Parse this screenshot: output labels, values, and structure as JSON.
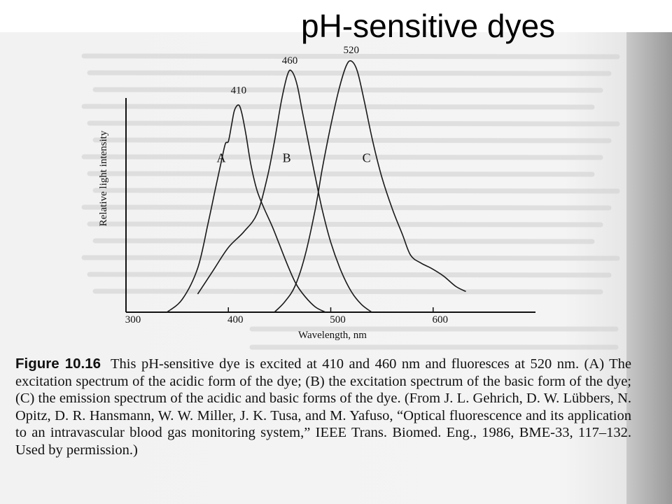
{
  "slide": {
    "title": "pH-sensitive dyes"
  },
  "figure": {
    "label": "Figure 10.16",
    "caption": "This pH-sensitive dye is excited at 410 and 460 nm and fluoresces at 520 nm. (A) The excitation spectrum of the acidic form of the dye; (B) the excitation spectrum of the basic form of the dye; (C) the emission spectrum of the acidic and basic forms of the dye. (From J. L. Gehrich, D. W. Lübbers, N. Opitz, D. R. Hansmann, W. W. Miller, J. K. Tusa, and M. Yafuso, “Optical fluorescence and its application to an intravascular blood gas monitoring system,” IEEE Trans. Biomed. Eng., 1986, BME-33, 117–132. Used by permission.)"
  },
  "chart_data": {
    "type": "line",
    "xlabel": "Wavelength, nm",
    "ylabel": "Relative light intensity",
    "xlim": [
      300,
      700
    ],
    "ylim": [
      0,
      1
    ],
    "x_ticks": [
      300,
      400,
      500,
      600
    ],
    "grid": false,
    "peak_labels": [
      {
        "x": 410,
        "y": 0.845,
        "text": "410"
      },
      {
        "x": 460,
        "y": 0.96,
        "text": "460"
      },
      {
        "x": 520,
        "y": 1.0,
        "text": "520"
      }
    ],
    "series": [
      {
        "name": "A",
        "label_position": {
          "x": 393,
          "y": 0.58
        },
        "points": [
          [
            340,
            0
          ],
          [
            355,
            0.05
          ],
          [
            370,
            0.17
          ],
          [
            380,
            0.34
          ],
          [
            387,
            0.47
          ],
          [
            393,
            0.58
          ],
          [
            397,
            0.65
          ],
          [
            400,
            0.66
          ],
          [
            403,
            0.72
          ],
          [
            406,
            0.78
          ],
          [
            410,
            0.8
          ],
          [
            413,
            0.77
          ],
          [
            417,
            0.69
          ],
          [
            422,
            0.57
          ],
          [
            428,
            0.47
          ],
          [
            435,
            0.4
          ],
          [
            443,
            0.33
          ],
          [
            450,
            0.26
          ],
          [
            458,
            0.18
          ],
          [
            466,
            0.11
          ],
          [
            475,
            0.06
          ],
          [
            485,
            0.02
          ],
          [
            495,
            0
          ]
        ]
      },
      {
        "name": "B",
        "label_position": {
          "x": 457,
          "y": 0.58
        },
        "points": [
          [
            370,
            0.07
          ],
          [
            385,
            0.16
          ],
          [
            400,
            0.25
          ],
          [
            415,
            0.31
          ],
          [
            428,
            0.38
          ],
          [
            438,
            0.52
          ],
          [
            445,
            0.66
          ],
          [
            452,
            0.82
          ],
          [
            458,
            0.92
          ],
          [
            462,
            0.93
          ],
          [
            467,
            0.88
          ],
          [
            472,
            0.78
          ],
          [
            478,
            0.66
          ],
          [
            485,
            0.52
          ],
          [
            492,
            0.39
          ],
          [
            500,
            0.27
          ],
          [
            510,
            0.16
          ],
          [
            520,
            0.08
          ],
          [
            530,
            0.03
          ],
          [
            540,
            0
          ]
        ]
      },
      {
        "name": "C",
        "label_position": {
          "x": 535,
          "y": 0.58
        },
        "points": [
          [
            445,
            0
          ],
          [
            455,
            0.04
          ],
          [
            465,
            0.1
          ],
          [
            475,
            0.22
          ],
          [
            485,
            0.4
          ],
          [
            492,
            0.56
          ],
          [
            500,
            0.72
          ],
          [
            508,
            0.86
          ],
          [
            515,
            0.95
          ],
          [
            520,
            0.97
          ],
          [
            526,
            0.93
          ],
          [
            533,
            0.81
          ],
          [
            541,
            0.66
          ],
          [
            550,
            0.52
          ],
          [
            560,
            0.4
          ],
          [
            570,
            0.3
          ],
          [
            578,
            0.22
          ],
          [
            588,
            0.19
          ],
          [
            598,
            0.17
          ],
          [
            610,
            0.14
          ],
          [
            622,
            0.1
          ],
          [
            632,
            0.08
          ]
        ]
      }
    ]
  }
}
